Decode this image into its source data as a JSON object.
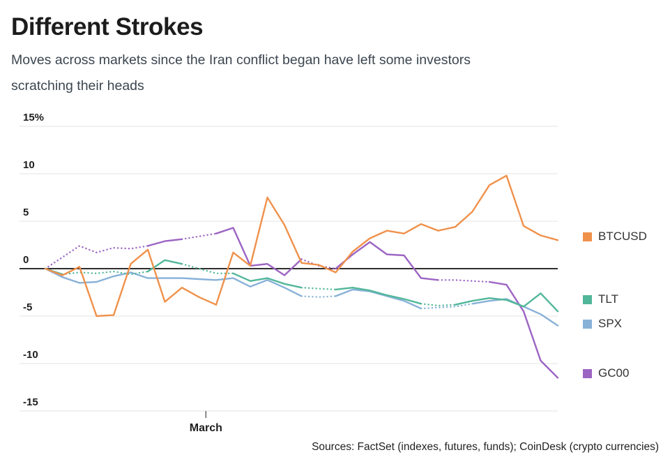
{
  "header": {
    "title": "Different Strokes",
    "subtitle_lines": [
      "Moves across markets since the Iran conflict began have left some investors",
      "scratching their heads"
    ]
  },
  "source": "Sources: FactSet (indexes, futures, funds); CoinDesk (crypto currencies)",
  "chart_data": {
    "type": "line",
    "title": "Different Strokes",
    "xlabel": "",
    "ylabel": "% change",
    "ylim": [
      -15,
      15
    ],
    "grid": true,
    "legend_position": "right",
    "ytick_labels": [
      "15%",
      "10",
      "5",
      "0",
      "-5",
      "-10",
      "-15"
    ],
    "ytick_values": [
      15,
      10,
      5,
      0,
      -5,
      -10,
      -15
    ],
    "xticks": [
      {
        "label": "March",
        "index": 9.4
      }
    ],
    "series": [
      {
        "name": "BTCUSD",
        "color": "#F0914B",
        "values": [
          0,
          -0.7,
          0.2,
          -5,
          -4.9,
          0.5,
          2,
          -3.5,
          -2,
          -3,
          -3.8,
          1.7,
          0.3,
          7.5,
          4.6,
          0.6,
          0.4,
          -0.4,
          1.8,
          3.2,
          4,
          3.7,
          4.7,
          4,
          4.4,
          6,
          8.8,
          9.8,
          4.5,
          3.5,
          3
        ],
        "dotted_ranges": []
      },
      {
        "name": "TLT",
        "color": "#52B79A",
        "values": [
          0,
          -0.6,
          -0.4,
          -0.5,
          -0.3,
          -0.6,
          -0.3,
          0.9,
          0.5,
          0,
          -0.5,
          -0.5,
          -1.3,
          -1,
          -1.6,
          -2,
          -2.1,
          -2.2,
          -2,
          -2.3,
          -2.8,
          -3.2,
          -3.7,
          -3.9,
          -3.8,
          -3.4,
          -3.1,
          -3.3,
          -4,
          -2.6,
          -4.5
        ],
        "dotted_ranges": [
          [
            1,
            6
          ],
          [
            8,
            11
          ],
          [
            15,
            17
          ],
          [
            22,
            24
          ]
        ]
      },
      {
        "name": "SPX",
        "color": "#88B1D8",
        "values": [
          0,
          -0.9,
          -1.5,
          -1.4,
          -0.8,
          -0.4,
          -1,
          -1,
          -1,
          -1.1,
          -1.2,
          -1,
          -1.9,
          -1.2,
          -2,
          -2.9,
          -3,
          -2.9,
          -2.2,
          -2.4,
          -2.9,
          -3.4,
          -4.2,
          -4.1,
          -4,
          -3.7,
          -3.4,
          -3.2,
          -4,
          -4.8,
          -6
        ],
        "dotted_ranges": [
          [
            15,
            17
          ],
          [
            22,
            25
          ]
        ]
      },
      {
        "name": "GC00",
        "color": "#9C64C3",
        "values": [
          0,
          1.2,
          2.4,
          1.7,
          2.2,
          2.1,
          2.4,
          2.9,
          3.1,
          3.4,
          3.7,
          4.3,
          0.3,
          0.5,
          -0.7,
          1,
          0.3,
          0,
          1.5,
          2.8,
          1.5,
          1.4,
          -1,
          -1.2,
          -1.2,
          -1.3,
          -1.4,
          -1.7,
          -4.5,
          -9.7,
          -11.5
        ],
        "dotted_ranges": [
          [
            0,
            6
          ],
          [
            8,
            10
          ],
          [
            15,
            17
          ],
          [
            23,
            26
          ]
        ]
      }
    ]
  }
}
